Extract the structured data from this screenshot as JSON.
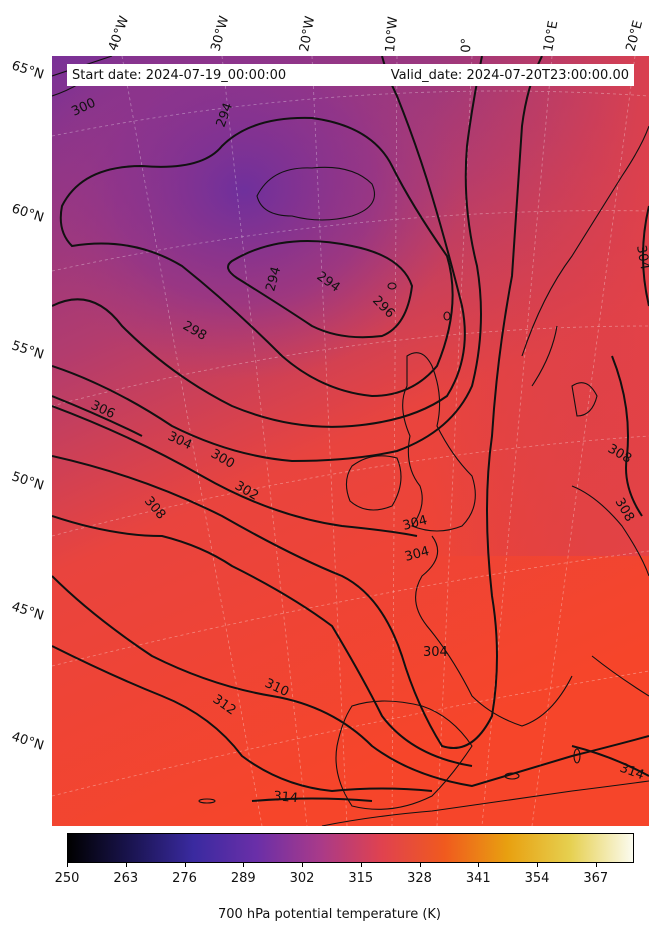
{
  "header": {
    "start_date": "Start date: 2024-07-19_00:00:00",
    "valid_date": "Valid_date: 2024-07-20T23:00:00.00"
  },
  "longitude_labels": [
    "40°W",
    "30°W",
    "20°W",
    "10°W",
    "0°",
    "10°E",
    "20°E"
  ],
  "latitude_labels": [
    "65°N",
    "60°N",
    "55°N",
    "50°N",
    "45°N",
    "40°N"
  ],
  "contour_labels": [
    "300",
    "294",
    "294",
    "294",
    "296",
    "298",
    "306",
    "304",
    "300",
    "302",
    "308",
    "304",
    "304",
    "304",
    "310",
    "312",
    "314",
    "314",
    "308",
    "308",
    "304"
  ],
  "colorbar": {
    "ticks": [
      "250",
      "263",
      "276",
      "289",
      "302",
      "315",
      "328",
      "341",
      "354",
      "367"
    ],
    "label": "700 hPa potential temperature (K)",
    "colormap": "CMRmap-like",
    "colors": [
      "#000000",
      "#1a1450",
      "#3a2aa0",
      "#6a2fa8",
      "#a83a8a",
      "#e0424f",
      "#f05a1e",
      "#e8a010",
      "#e6d050",
      "#fbfbef"
    ]
  }
}
